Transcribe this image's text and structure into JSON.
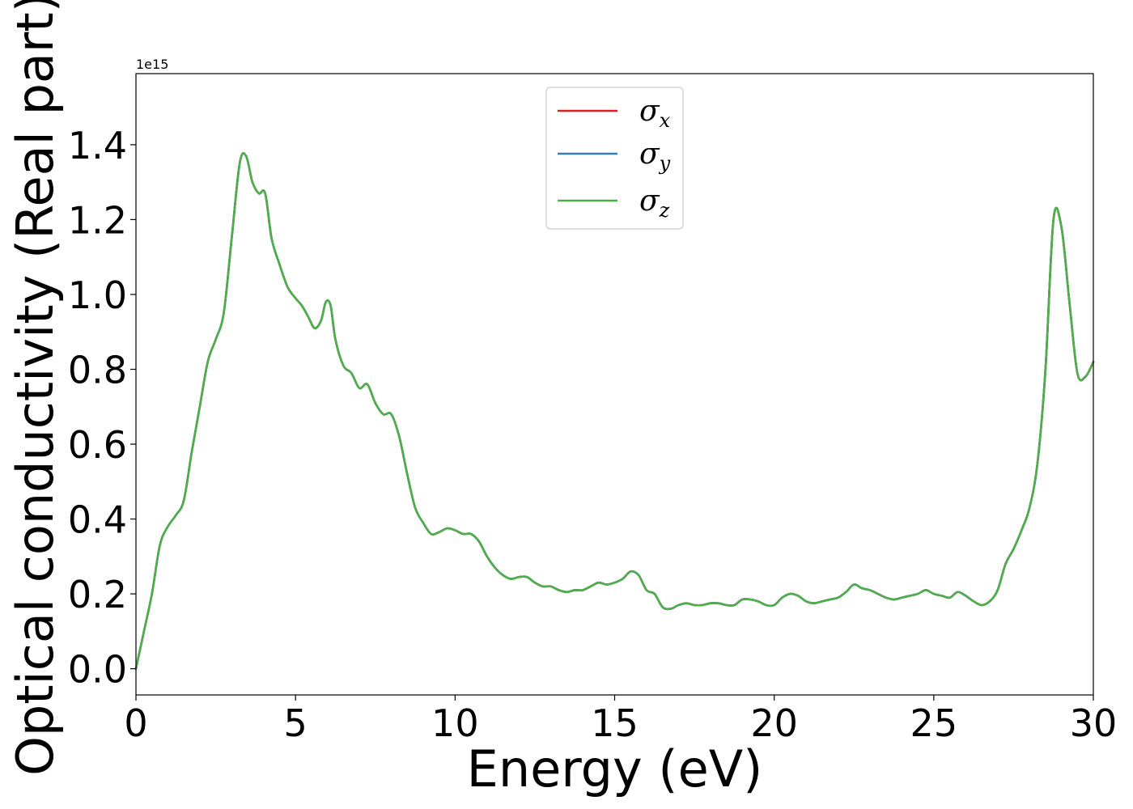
{
  "chart_data": {
    "type": "line",
    "title": "",
    "xlabel": "Energy (eV)",
    "ylabel": "Optical conductivity (Real part)",
    "y_offset_label": "1e15",
    "xlim": [
      0,
      30
    ],
    "ylim": [
      -0.07,
      1.59
    ],
    "x_ticks": [
      0,
      5,
      10,
      15,
      20,
      25,
      30
    ],
    "x_tick_labels": [
      "0",
      "5",
      "10",
      "15",
      "20",
      "25",
      "30"
    ],
    "y_ticks": [
      0.0,
      0.2,
      0.4,
      0.6,
      0.8,
      1.0,
      1.2,
      1.4
    ],
    "y_tick_labels": [
      "0.0",
      "0.2",
      "0.4",
      "0.6",
      "0.8",
      "1.0",
      "1.2",
      "1.4"
    ],
    "grid": false,
    "legend_position": "upper center",
    "x": [
      0.0,
      0.25,
      0.5,
      0.75,
      1.0,
      1.25,
      1.5,
      1.75,
      2.0,
      2.25,
      2.5,
      2.75,
      3.0,
      3.25,
      3.45,
      3.65,
      3.85,
      4.05,
      4.25,
      4.5,
      4.75,
      5.0,
      5.2,
      5.4,
      5.6,
      5.8,
      5.95,
      6.1,
      6.25,
      6.5,
      6.75,
      7.0,
      7.25,
      7.5,
      7.75,
      8.0,
      8.25,
      8.5,
      8.75,
      9.0,
      9.25,
      9.5,
      9.75,
      10.0,
      10.25,
      10.5,
      10.75,
      11.0,
      11.25,
      11.5,
      11.75,
      12.0,
      12.25,
      12.5,
      12.75,
      13.0,
      13.25,
      13.5,
      13.75,
      14.0,
      14.25,
      14.5,
      14.75,
      15.0,
      15.25,
      15.5,
      15.75,
      16.0,
      16.25,
      16.5,
      16.75,
      17.0,
      17.25,
      17.5,
      17.75,
      18.0,
      18.25,
      18.5,
      18.75,
      19.0,
      19.25,
      19.5,
      19.75,
      20.0,
      20.25,
      20.5,
      20.75,
      21.0,
      21.25,
      21.5,
      21.75,
      22.0,
      22.25,
      22.5,
      22.75,
      23.0,
      23.25,
      23.5,
      23.75,
      24.0,
      24.25,
      24.5,
      24.75,
      25.0,
      25.25,
      25.5,
      25.75,
      26.0,
      26.25,
      26.5,
      26.75,
      27.0,
      27.25,
      27.5,
      27.75,
      28.0,
      28.25,
      28.5,
      28.75,
      29.0,
      29.25,
      29.5,
      29.75,
      30.0
    ],
    "series": [
      {
        "name": "σx",
        "symbol": "σ",
        "subscript": "x",
        "color": "#e41a1c",
        "values": [
          0.0,
          0.1,
          0.2,
          0.33,
          0.38,
          0.41,
          0.45,
          0.58,
          0.7,
          0.82,
          0.88,
          0.95,
          1.15,
          1.35,
          1.37,
          1.3,
          1.27,
          1.27,
          1.15,
          1.08,
          1.02,
          0.99,
          0.97,
          0.94,
          0.91,
          0.93,
          0.98,
          0.97,
          0.88,
          0.81,
          0.79,
          0.75,
          0.76,
          0.71,
          0.68,
          0.68,
          0.62,
          0.52,
          0.43,
          0.39,
          0.36,
          0.365,
          0.375,
          0.37,
          0.36,
          0.36,
          0.34,
          0.3,
          0.27,
          0.25,
          0.24,
          0.245,
          0.245,
          0.23,
          0.22,
          0.22,
          0.21,
          0.205,
          0.21,
          0.21,
          0.22,
          0.23,
          0.225,
          0.23,
          0.24,
          0.26,
          0.25,
          0.21,
          0.2,
          0.165,
          0.16,
          0.17,
          0.175,
          0.17,
          0.17,
          0.175,
          0.175,
          0.17,
          0.17,
          0.185,
          0.185,
          0.18,
          0.17,
          0.17,
          0.19,
          0.2,
          0.195,
          0.18,
          0.175,
          0.18,
          0.185,
          0.19,
          0.205,
          0.225,
          0.215,
          0.21,
          0.2,
          0.19,
          0.185,
          0.19,
          0.195,
          0.2,
          0.21,
          0.2,
          0.195,
          0.19,
          0.205,
          0.195,
          0.18,
          0.17,
          0.18,
          0.21,
          0.28,
          0.32,
          0.37,
          0.43,
          0.55,
          0.8,
          1.2,
          1.18,
          0.98,
          0.79,
          0.78,
          0.82
        ]
      },
      {
        "name": "σy",
        "symbol": "σ",
        "subscript": "y",
        "color": "#377eb8",
        "values": [
          0.0,
          0.1,
          0.2,
          0.33,
          0.38,
          0.41,
          0.45,
          0.58,
          0.7,
          0.82,
          0.88,
          0.95,
          1.15,
          1.35,
          1.37,
          1.3,
          1.27,
          1.27,
          1.15,
          1.08,
          1.02,
          0.99,
          0.97,
          0.94,
          0.91,
          0.93,
          0.98,
          0.97,
          0.88,
          0.81,
          0.79,
          0.75,
          0.76,
          0.71,
          0.68,
          0.68,
          0.62,
          0.52,
          0.43,
          0.39,
          0.36,
          0.365,
          0.375,
          0.37,
          0.36,
          0.36,
          0.34,
          0.3,
          0.27,
          0.25,
          0.24,
          0.245,
          0.245,
          0.23,
          0.22,
          0.22,
          0.21,
          0.205,
          0.21,
          0.21,
          0.22,
          0.23,
          0.225,
          0.23,
          0.24,
          0.26,
          0.25,
          0.21,
          0.2,
          0.165,
          0.16,
          0.17,
          0.175,
          0.17,
          0.17,
          0.175,
          0.175,
          0.17,
          0.17,
          0.185,
          0.185,
          0.18,
          0.17,
          0.17,
          0.19,
          0.2,
          0.195,
          0.18,
          0.175,
          0.18,
          0.185,
          0.19,
          0.205,
          0.225,
          0.215,
          0.21,
          0.2,
          0.19,
          0.185,
          0.19,
          0.195,
          0.2,
          0.21,
          0.2,
          0.195,
          0.19,
          0.205,
          0.195,
          0.18,
          0.17,
          0.18,
          0.21,
          0.28,
          0.32,
          0.37,
          0.43,
          0.55,
          0.8,
          1.2,
          1.18,
          0.98,
          0.79,
          0.78,
          0.82
        ]
      },
      {
        "name": "σz",
        "symbol": "σ",
        "subscript": "z",
        "color": "#4daf4a",
        "values": [
          0.0,
          0.1,
          0.2,
          0.33,
          0.38,
          0.41,
          0.45,
          0.58,
          0.7,
          0.82,
          0.88,
          0.95,
          1.15,
          1.35,
          1.37,
          1.3,
          1.27,
          1.27,
          1.15,
          1.08,
          1.02,
          0.99,
          0.97,
          0.94,
          0.91,
          0.93,
          0.98,
          0.97,
          0.88,
          0.81,
          0.79,
          0.75,
          0.76,
          0.71,
          0.68,
          0.68,
          0.62,
          0.52,
          0.43,
          0.39,
          0.36,
          0.365,
          0.375,
          0.37,
          0.36,
          0.36,
          0.34,
          0.3,
          0.27,
          0.25,
          0.24,
          0.245,
          0.245,
          0.23,
          0.22,
          0.22,
          0.21,
          0.205,
          0.21,
          0.21,
          0.22,
          0.23,
          0.225,
          0.23,
          0.24,
          0.26,
          0.25,
          0.21,
          0.2,
          0.165,
          0.16,
          0.17,
          0.175,
          0.17,
          0.17,
          0.175,
          0.175,
          0.17,
          0.17,
          0.185,
          0.185,
          0.18,
          0.17,
          0.17,
          0.19,
          0.2,
          0.195,
          0.18,
          0.175,
          0.18,
          0.185,
          0.19,
          0.205,
          0.225,
          0.215,
          0.21,
          0.2,
          0.19,
          0.185,
          0.19,
          0.195,
          0.2,
          0.21,
          0.2,
          0.195,
          0.19,
          0.205,
          0.195,
          0.18,
          0.17,
          0.18,
          0.21,
          0.28,
          0.32,
          0.37,
          0.43,
          0.55,
          0.8,
          1.2,
          1.18,
          0.98,
          0.79,
          0.78,
          0.82
        ]
      }
    ]
  }
}
